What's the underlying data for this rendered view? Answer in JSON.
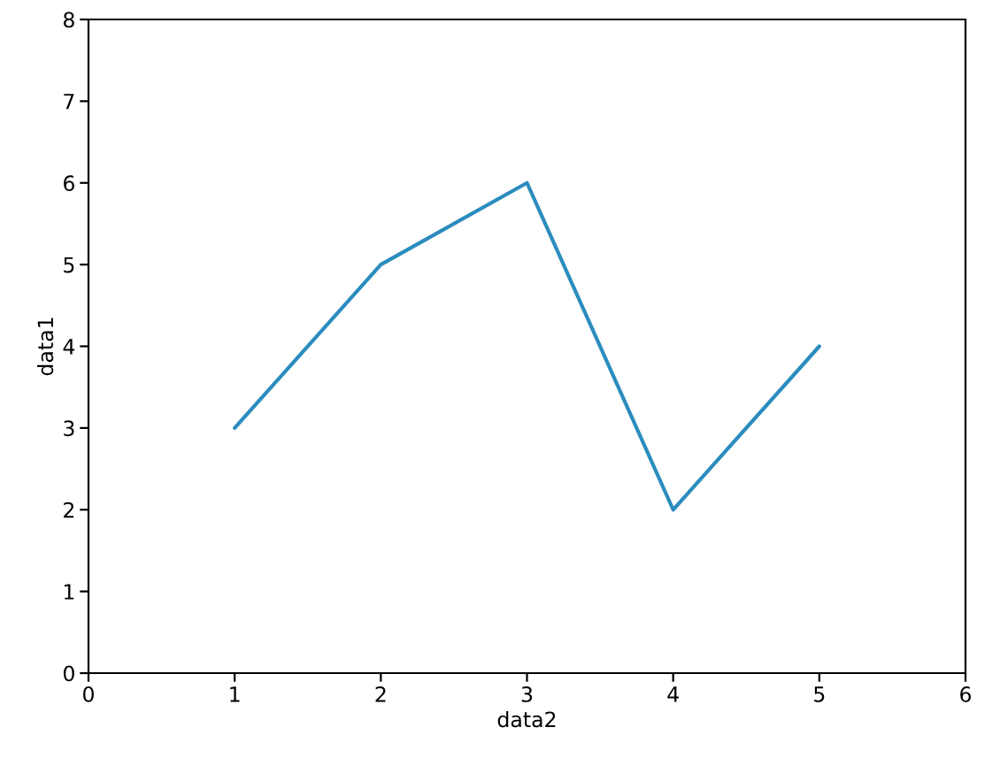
{
  "chart_data": {
    "type": "line",
    "xlabel": "data2",
    "ylabel": "data1",
    "x": [
      1,
      2,
      3,
      4,
      5
    ],
    "series": [
      {
        "color": "#2b8cbe",
        "values": [
          3,
          5,
          6,
          2,
          4
        ]
      }
    ],
    "xlim": [
      0,
      6
    ],
    "xticks": [
      0,
      1,
      2,
      3,
      4,
      5,
      6
    ],
    "ylim": [
      0,
      8
    ],
    "yticks": [
      0,
      1,
      2,
      3,
      4,
      5,
      6,
      7,
      8
    ],
    "grid": false
  }
}
